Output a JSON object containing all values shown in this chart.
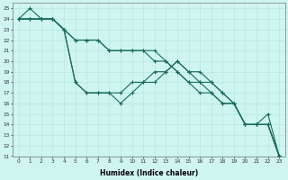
{
  "xlabel": "Humidex (Indice chaleur)",
  "xlim_min": -0.5,
  "xlim_max": 23.5,
  "ylim_min": 11,
  "ylim_max": 25.5,
  "xticks": [
    0,
    1,
    2,
    3,
    4,
    5,
    6,
    7,
    8,
    9,
    10,
    11,
    12,
    13,
    14,
    15,
    16,
    17,
    18,
    19,
    20,
    21,
    22,
    23
  ],
  "yticks": [
    11,
    12,
    13,
    14,
    15,
    16,
    17,
    18,
    19,
    20,
    21,
    22,
    23,
    24,
    25
  ],
  "background_color": "#cef5f0",
  "line_color": "#1a6b5a",
  "grid_color": "#b8e8e0",
  "series": [
    [
      24,
      25,
      24,
      24,
      23,
      18,
      17,
      17,
      17,
      16,
      17,
      18,
      18,
      19,
      20,
      19,
      19,
      18,
      17,
      16,
      14,
      14,
      15,
      11
    ],
    [
      24,
      24,
      24,
      24,
      23,
      18,
      17,
      17,
      17,
      17,
      18,
      18,
      19,
      19,
      20,
      19,
      18,
      18,
      17,
      16,
      14,
      14,
      14,
      11
    ],
    [
      24,
      24,
      24,
      24,
      23,
      22,
      22,
      22,
      21,
      21,
      21,
      21,
      21,
      20,
      19,
      18,
      18,
      17,
      16,
      16,
      14,
      14,
      14,
      11
    ],
    [
      24,
      24,
      24,
      24,
      23,
      22,
      22,
      22,
      21,
      21,
      21,
      21,
      20,
      20,
      19,
      18,
      17,
      17,
      16,
      16,
      14,
      14,
      14,
      11
    ]
  ],
  "xlabel_fontsize": 5.5,
  "tick_fontsize": 4.2
}
